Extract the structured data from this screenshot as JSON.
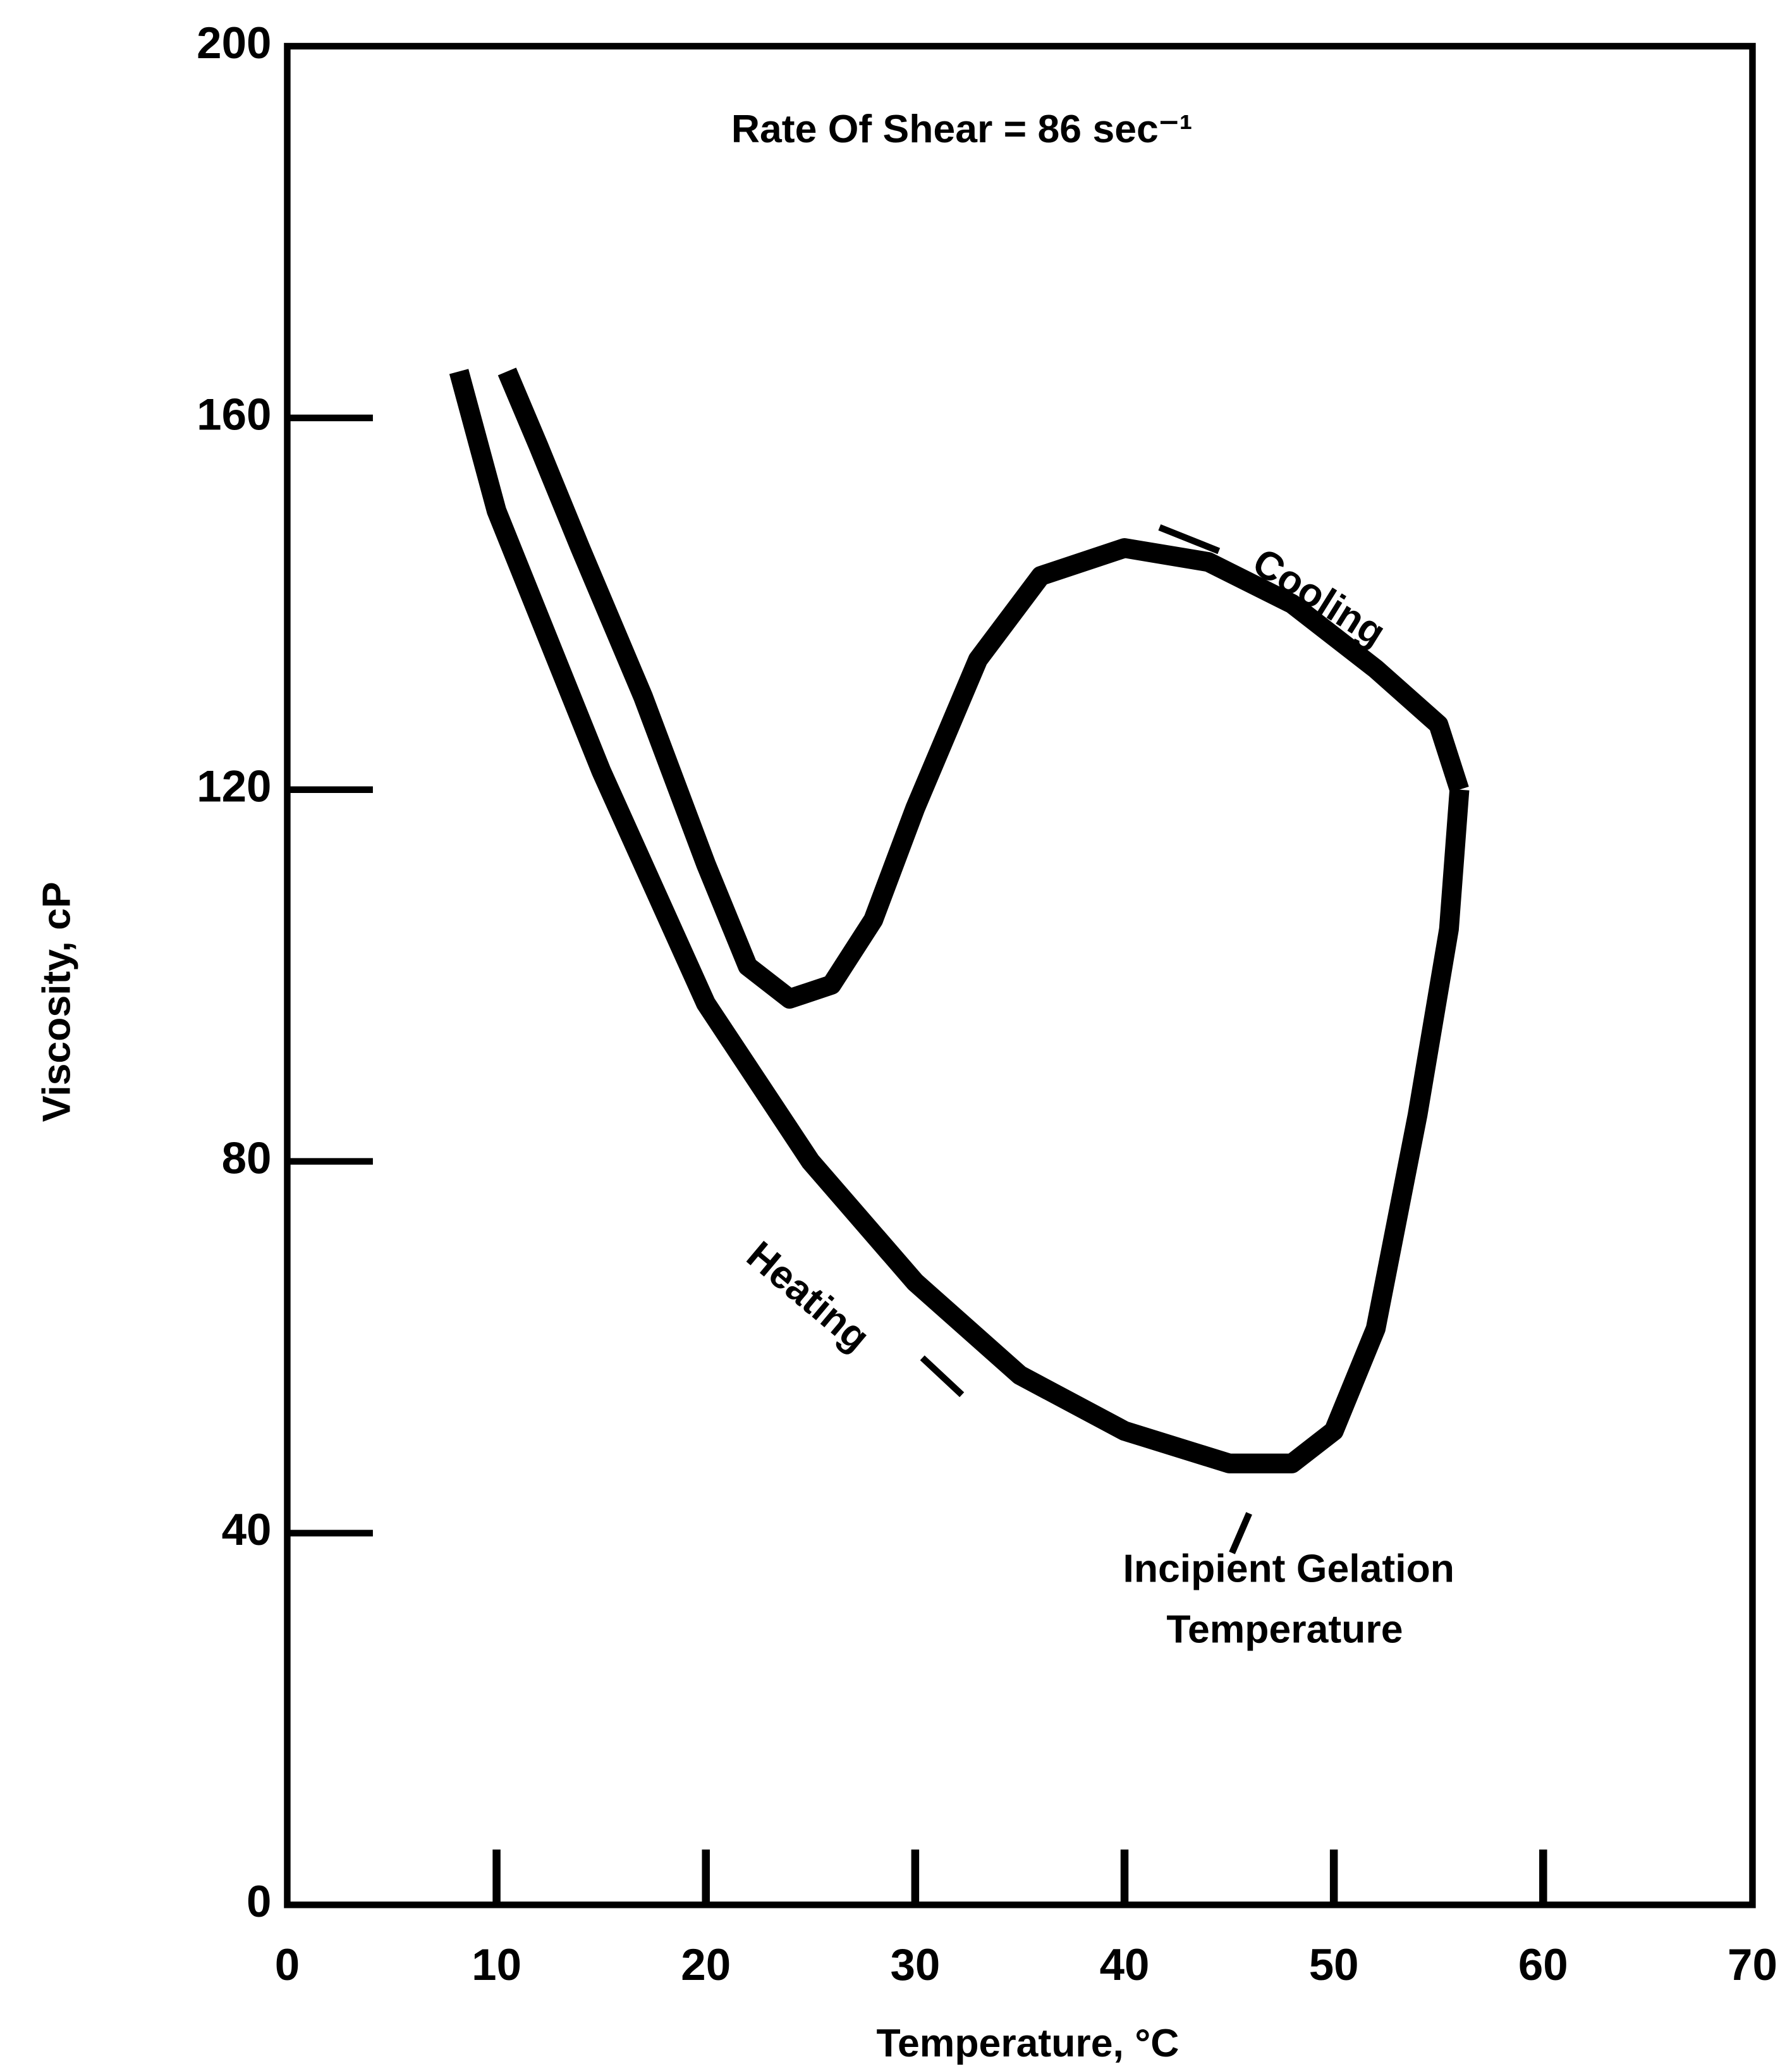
{
  "chart_data": {
    "type": "line",
    "title": "Rate Of Shear = 86 sec⁻¹",
    "x_label": "Temperature, °C",
    "y_label": "Viscosity, cP",
    "xlim": [
      0,
      70
    ],
    "xticks": [
      0,
      10,
      20,
      30,
      40,
      50,
      60,
      70
    ],
    "ylim": [
      0,
      200
    ],
    "yticks": [
      0,
      40,
      80,
      120,
      160,
      200
    ],
    "grid": false,
    "series": [
      {
        "name": "Heating",
        "color": "#000000",
        "x": [
          8.2,
          10,
          15,
          20,
          25,
          30,
          35,
          40,
          45,
          48,
          50,
          52,
          54,
          55.5,
          56
        ],
        "values": [
          165,
          150,
          122,
          97,
          80,
          67,
          57,
          51,
          47.5,
          47.5,
          51,
          62,
          85,
          105,
          120
        ]
      },
      {
        "name": "Cooling",
        "color": "#000000",
        "x": [
          56,
          55,
          52,
          48,
          44,
          40,
          36,
          33,
          30,
          28,
          26,
          24,
          22,
          20,
          17,
          14,
          12,
          10.5
        ],
        "values": [
          120,
          127,
          133,
          140,
          144.5,
          146,
          143,
          134,
          118,
          106,
          99,
          97.5,
          101,
          112,
          130,
          146,
          157,
          165
        ]
      }
    ],
    "annotations": [
      {
        "text": "Incipient Gelation",
        "text2": "Temperature"
      }
    ]
  }
}
